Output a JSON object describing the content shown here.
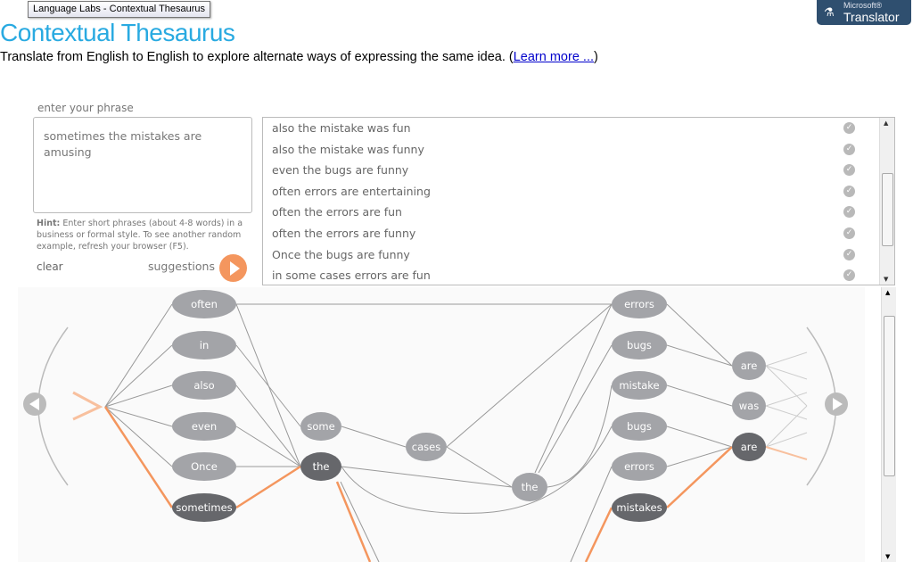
{
  "tooltip": "Language Labs - Contextual Thesaurus",
  "logo": {
    "small": "Microsoft®",
    "name": "Translator"
  },
  "header": {
    "title": "Contextual Thesaurus",
    "subtitle": "Translate from English to English to explore alternate ways of expressing the same idea. (",
    "learn_more": "Learn more ...",
    "subtitle_end": ")"
  },
  "input": {
    "label": "enter your phrase",
    "value": "sometimes the mistakes are amusing",
    "hint_bold": "Hint:",
    "hint": " Enter short phrases (about 4-8 words) in a business or formal style. To see another random example, refresh your browser (F5).",
    "clear": "clear",
    "suggestions": "suggestions"
  },
  "results": [
    "also the mistake was fun",
    "also the mistake was funny",
    "even the bugs are funny",
    "often errors are entertaining",
    "often the errors are fun",
    "often the errors are funny",
    "Once the bugs are funny",
    "in some cases errors are fun"
  ],
  "colors": {
    "accent": "#f4965e",
    "node": "#a3a4a8",
    "node_selected": "#66676b",
    "title": "#29aae1"
  },
  "graph": {
    "nodes": [
      "often",
      "in",
      "also",
      "even",
      "Once",
      "sometimes",
      "some",
      "the",
      "cases",
      "the",
      "errors",
      "bugs",
      "mistake",
      "bugs",
      "errors",
      "mistakes",
      "are",
      "was",
      "are"
    ],
    "selected": [
      "sometimes",
      "the",
      "mistakes",
      "are"
    ]
  }
}
